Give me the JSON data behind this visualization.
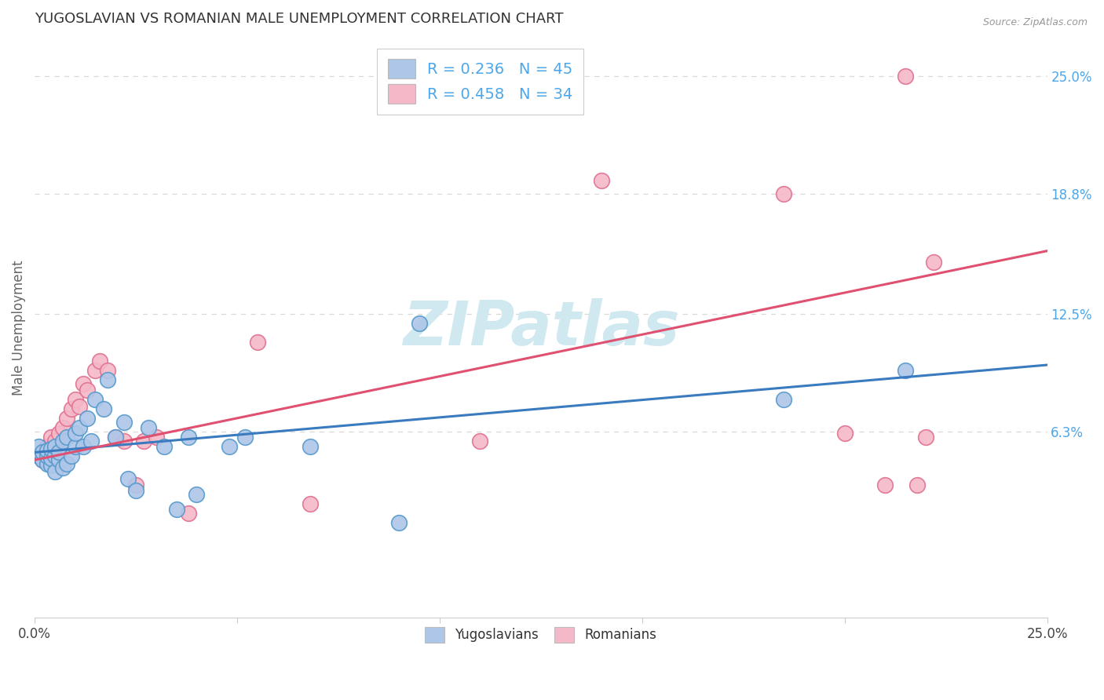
{
  "title": "YUGOSLAVIAN VS ROMANIAN MALE UNEMPLOYMENT CORRELATION CHART",
  "source": "Source: ZipAtlas.com",
  "ylabel": "Male Unemployment",
  "xlim": [
    0.0,
    0.25
  ],
  "ylim": [
    -0.035,
    0.27
  ],
  "x_ticks": [
    0.0,
    0.05,
    0.1,
    0.15,
    0.2,
    0.25
  ],
  "x_tick_labels": [
    "0.0%",
    "",
    "",
    "",
    "",
    "25.0%"
  ],
  "y_tick_labels_right": [
    "6.3%",
    "12.5%",
    "18.8%",
    "25.0%"
  ],
  "y_tick_vals_right": [
    0.063,
    0.125,
    0.188,
    0.25
  ],
  "legend_r1": "R = 0.236   N = 45",
  "legend_r2": "R = 0.458   N = 34",
  "legend_color1": "#aec6e8",
  "legend_color2": "#f4b8c8",
  "watermark": "ZIPatlas",
  "watermark_color": "#d0e8f0",
  "axis_label_color": "#4da6e8",
  "blue_line_color": "#3a7abf",
  "pink_line_color": "#e05070",
  "scatter_blue_face": "#aec6e8",
  "scatter_blue_edge": "#5599cc",
  "scatter_pink_face": "#f4b8c8",
  "scatter_pink_edge": "#e07090",
  "yug_x": [
    0.001,
    0.001,
    0.002,
    0.002,
    0.003,
    0.003,
    0.003,
    0.004,
    0.004,
    0.004,
    0.005,
    0.005,
    0.005,
    0.006,
    0.006,
    0.007,
    0.007,
    0.008,
    0.008,
    0.009,
    0.01,
    0.01,
    0.011,
    0.012,
    0.013,
    0.014,
    0.015,
    0.017,
    0.018,
    0.02,
    0.022,
    0.023,
    0.025,
    0.028,
    0.032,
    0.035,
    0.038,
    0.04,
    0.048,
    0.052,
    0.068,
    0.09,
    0.095,
    0.185,
    0.215
  ],
  "yug_y": [
    0.05,
    0.055,
    0.048,
    0.052,
    0.046,
    0.05,
    0.053,
    0.045,
    0.049,
    0.054,
    0.042,
    0.05,
    0.055,
    0.048,
    0.052,
    0.044,
    0.058,
    0.046,
    0.06,
    0.05,
    0.055,
    0.062,
    0.065,
    0.055,
    0.07,
    0.058,
    0.08,
    0.075,
    0.09,
    0.06,
    0.068,
    0.038,
    0.032,
    0.065,
    0.055,
    0.022,
    0.06,
    0.03,
    0.055,
    0.06,
    0.055,
    0.015,
    0.12,
    0.08,
    0.095
  ],
  "rom_x": [
    0.001,
    0.002,
    0.002,
    0.003,
    0.004,
    0.005,
    0.006,
    0.007,
    0.008,
    0.009,
    0.01,
    0.011,
    0.012,
    0.013,
    0.015,
    0.016,
    0.018,
    0.02,
    0.022,
    0.025,
    0.027,
    0.03,
    0.038,
    0.055,
    0.068,
    0.11,
    0.14,
    0.185,
    0.2,
    0.21,
    0.215,
    0.218,
    0.22,
    0.222
  ],
  "rom_y": [
    0.05,
    0.048,
    0.052,
    0.055,
    0.06,
    0.058,
    0.062,
    0.065,
    0.07,
    0.075,
    0.08,
    0.076,
    0.088,
    0.085,
    0.095,
    0.1,
    0.095,
    0.06,
    0.058,
    0.035,
    0.058,
    0.06,
    0.02,
    0.11,
    0.025,
    0.058,
    0.195,
    0.188,
    0.062,
    0.035,
    0.25,
    0.035,
    0.06,
    0.152
  ],
  "yug_trend_x": [
    0.0,
    0.25
  ],
  "yug_trend_y": [
    0.052,
    0.098
  ],
  "rom_trend_x": [
    0.0,
    0.25
  ],
  "rom_trend_y": [
    0.048,
    0.158
  ],
  "legend_labels": [
    "Yugoslavians",
    "Romanians"
  ],
  "background_color": "#ffffff",
  "grid_color": "#d8d8d8"
}
